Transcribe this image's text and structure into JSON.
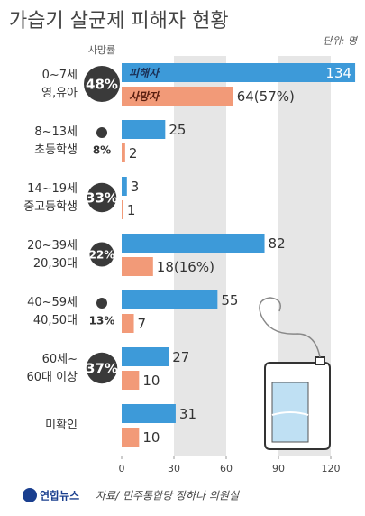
{
  "chart_data": {
    "type": "bar",
    "orientation": "horizontal",
    "title": "가습기 살균제 피해자 현황",
    "unit": "단위: 명",
    "categories": [
      "0~7세\n영,유아",
      "8~13세\n초등학생",
      "14~19세\n중고등학생",
      "20~39세\n20,30대",
      "40~59세\n40,50대",
      "60세~\n60대 이상",
      "미확인"
    ],
    "series": [
      {
        "name": "피해자",
        "color": "#3d9ad9",
        "values": [
          134,
          25,
          3,
          82,
          55,
          27,
          31
        ]
      },
      {
        "name": "사망자",
        "color": "#f29a78",
        "values": [
          64,
          2,
          1,
          18,
          7,
          10,
          10
        ],
        "value_labels": [
          "64(57%)",
          "2",
          "1",
          "18(16%)",
          "7",
          "10",
          "10"
        ]
      }
    ],
    "death_rate": {
      "name": "사망률",
      "color": "#3a3a3a",
      "values": [
        48,
        8,
        33,
        22,
        13,
        37,
        null
      ],
      "value_labels": [
        "48%",
        "8%",
        "33%",
        "22%",
        "13%",
        "37%",
        null
      ]
    },
    "xlim": [
      0,
      135
    ],
    "xticks": [
      0,
      30,
      60,
      90,
      120
    ],
    "source": "자료/ 민주통합당 장하나 의원실",
    "logo": "연합뉴스"
  }
}
